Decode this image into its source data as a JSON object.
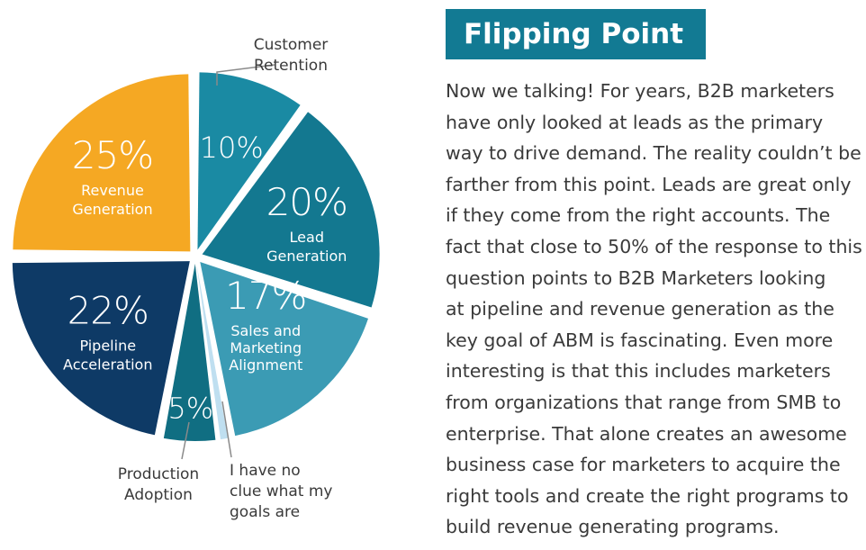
{
  "chart_data": {
    "type": "pie",
    "slices": [
      {
        "label_lines": [
          "Customer",
          "Retention"
        ],
        "pct_text": "10%",
        "value": 10,
        "color": "#1a8aa3"
      },
      {
        "label_lines": [
          "Lead",
          "Generation"
        ],
        "pct_text": "20%",
        "value": 20,
        "color": "#137890"
      },
      {
        "label_lines": [
          "Sales and",
          "Marketing",
          "Alignment"
        ],
        "pct_text": "17%",
        "value": 17,
        "color": "#3b9bb4"
      },
      {
        "label_lines": [
          "I have no",
          "clue what my",
          "goals are"
        ],
        "pct_text": "",
        "value": 1,
        "color": "#bfdff0"
      },
      {
        "label_lines": [
          "Production",
          "Adoption"
        ],
        "pct_text": "5%",
        "value": 5,
        "color": "#106e82"
      },
      {
        "label_lines": [
          "Pipeline",
          "Acceleration"
        ],
        "pct_text": "22%",
        "value": 22,
        "color": "#0e3a66"
      },
      {
        "label_lines": [
          "Revenue",
          "Generation"
        ],
        "pct_text": "25%",
        "value": 25,
        "color": "#f5a823"
      }
    ]
  },
  "article": {
    "title": "Flipping Point",
    "title_bg": "#127a93",
    "lines": [
      "Now we talking! For years, B2B marketers",
      "have only looked at leads as the primary",
      "way to drive demand. The reality couldn’t be",
      "farther from this point. Leads are great only",
      "if they come from the right accounts. The",
      "fact that close to 50% of the response to this",
      "question points to B2B Marketers looking",
      "at pipeline and revenue generation as the",
      "key goal of ABM is fascinating. Even more",
      "interesting is that this includes marketers",
      "from organizations that range from SMB to",
      "enterprise. That alone creates an awesome",
      "business case for marketers to acquire the",
      "right tools and create the right programs to",
      "build revenue generating programs."
    ]
  }
}
